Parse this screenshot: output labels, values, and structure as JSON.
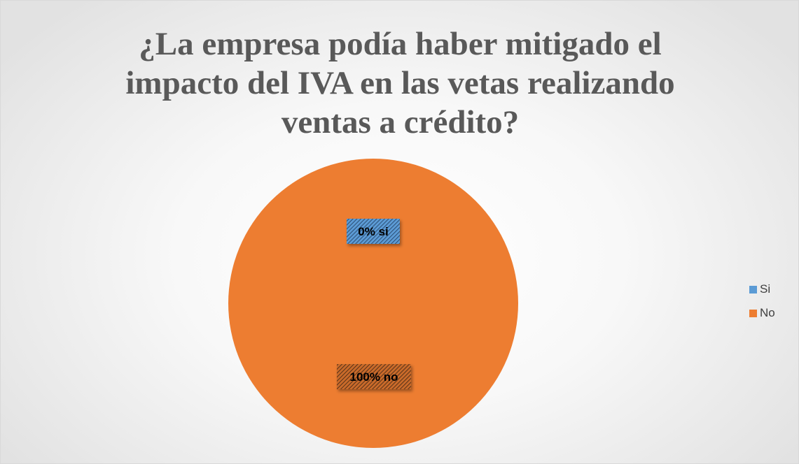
{
  "chart_data": {
    "type": "pie",
    "title": "¿La empresa podía haber mitigado el impacto del IVA en las vetas realizando ventas a crédito?",
    "categories": [
      "Si",
      "No"
    ],
    "values": [
      0,
      100
    ],
    "colors": [
      "#5B9BD5",
      "#ED7D31"
    ],
    "data_labels": [
      "0% si",
      "100% no"
    ],
    "legend_position": "right"
  }
}
